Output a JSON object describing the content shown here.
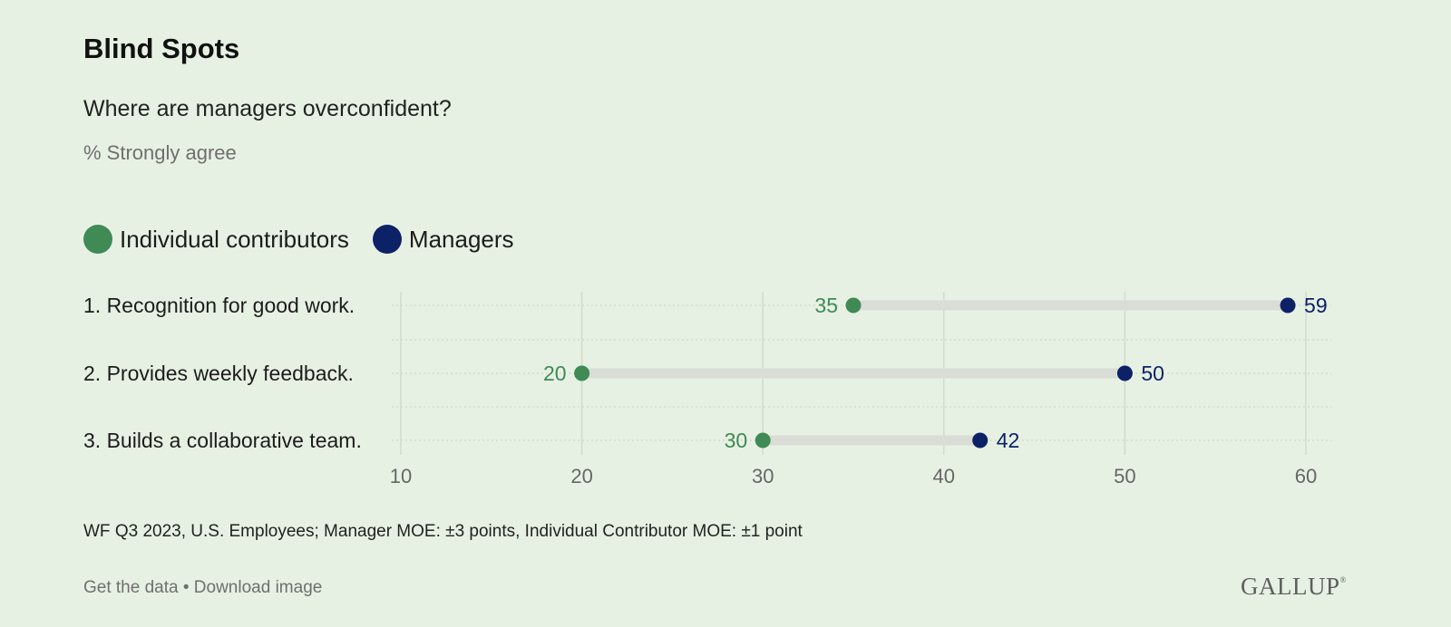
{
  "header": {
    "title": "Blind Spots",
    "subtitle": "Where are managers overconfident?",
    "unit": "% Strongly agree"
  },
  "colors": {
    "individual": "#3f8a55",
    "managers": "#0d2167",
    "connector": "#d9ddd6",
    "grid": "#cfdccb",
    "axis_text": "#666666",
    "category_text": "#1c1c1c"
  },
  "chart_data": {
    "type": "dumbbell",
    "categories": [
      "1. Recognition for good work.",
      "2. Provides weekly feedback.",
      "3. Builds a collaborative team."
    ],
    "series": [
      {
        "name": "Individual contributors",
        "values": [
          35,
          20,
          30
        ]
      },
      {
        "name": "Managers",
        "values": [
          59,
          50,
          42
        ]
      }
    ],
    "xlim": [
      10,
      60
    ],
    "xticks": [
      10,
      20,
      30,
      40,
      50,
      60
    ],
    "legend_position": "top-left",
    "grid": true
  },
  "footer": {
    "footnote": "WF Q3 2023, U.S. Employees; Manager MOE: ±3 points, Individual Contributor MOE: ±1 point",
    "get_data_label": "Get the data",
    "separator": " • ",
    "download_label": "Download image",
    "logo_text": "GALLUP",
    "logo_mark": "®"
  }
}
